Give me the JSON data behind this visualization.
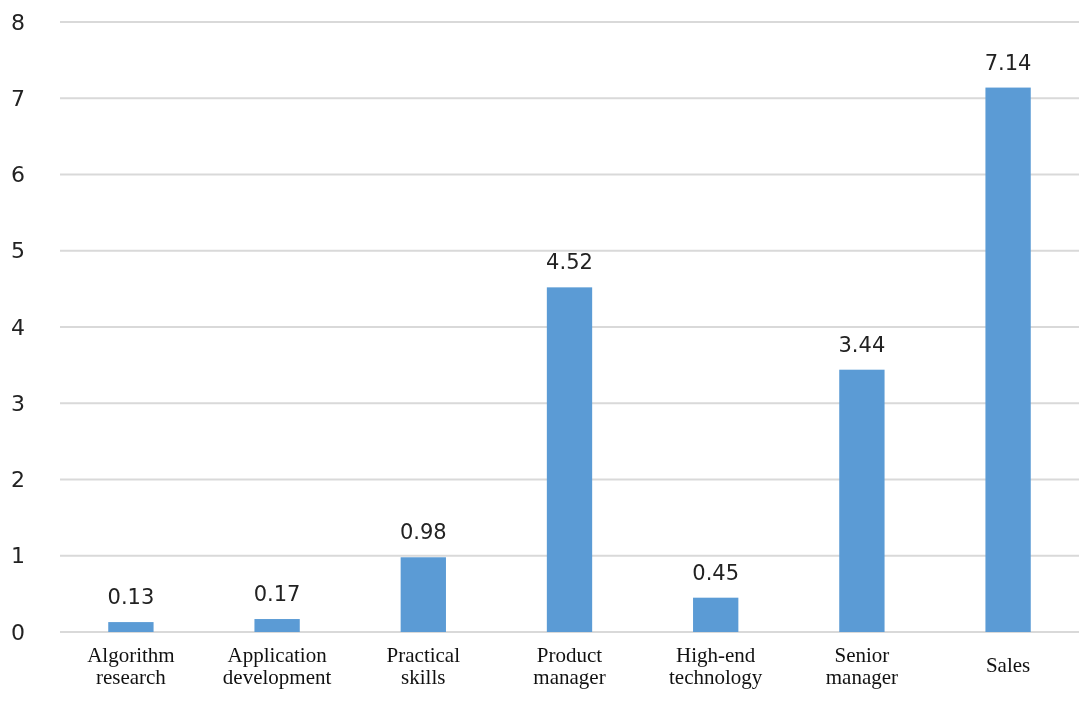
{
  "chart_data": {
    "type": "bar",
    "categories": [
      "Algorithm research",
      "Application development",
      "Practical skills",
      "Product manager",
      "High-end technology",
      "Senior manager",
      "Sales"
    ],
    "values": [
      0.13,
      0.17,
      0.98,
      4.52,
      0.45,
      3.44,
      7.14
    ],
    "color": "#5b9bd5",
    "ylim": [
      0,
      8
    ],
    "yticks": [
      0,
      1,
      2,
      3,
      4,
      5,
      6,
      7,
      8
    ],
    "grid": "y",
    "data_labels": true
  }
}
